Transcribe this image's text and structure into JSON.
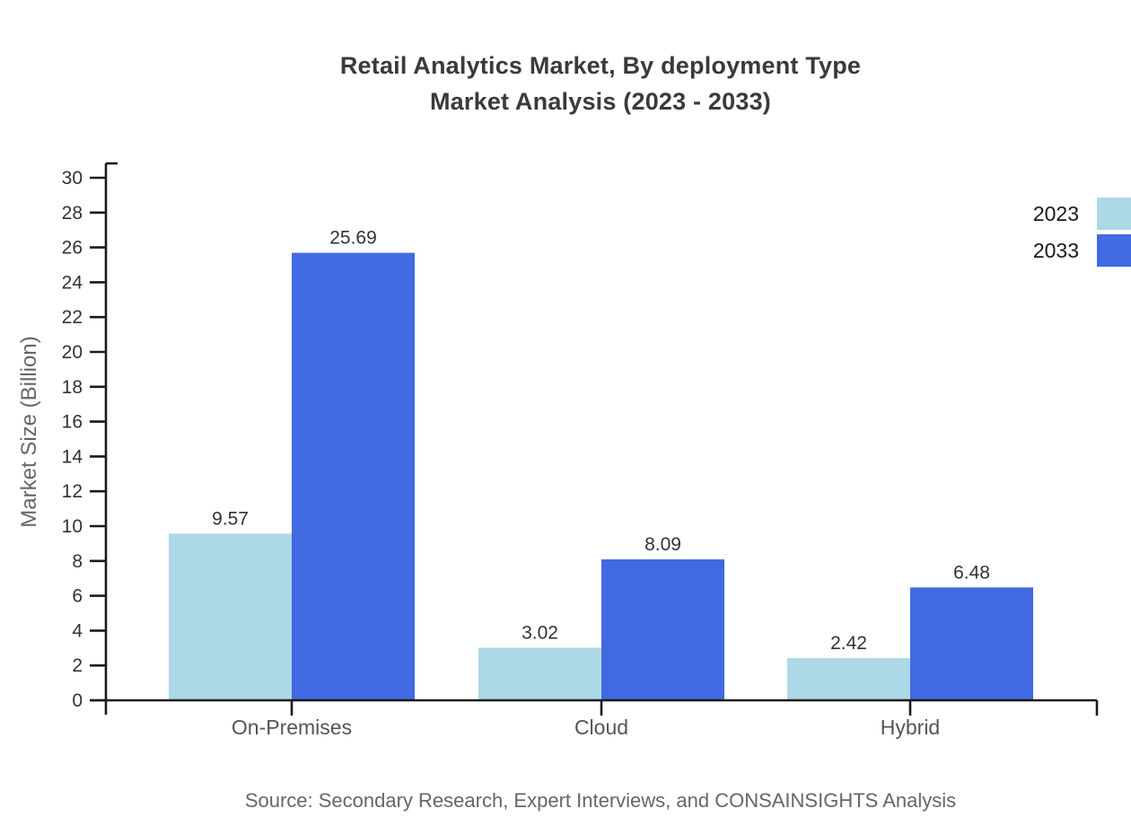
{
  "title": {
    "line1": "Retail Analytics Market, By deployment Type",
    "line2": "Market Analysis (2023 - 2033)"
  },
  "source": "Source: Secondary Research, Expert Interviews, and CONSAINSIGHTS Analysis",
  "chart_data": {
    "type": "bar",
    "title": "Retail Analytics Market, By deployment Type Market Analysis (2023 - 2033)",
    "categories": [
      "On-Premises",
      "Cloud",
      "Hybrid"
    ],
    "series": [
      {
        "name": "2023",
        "color": "#ADD8E6",
        "values": [
          9.57,
          3.02,
          2.42
        ]
      },
      {
        "name": "2033",
        "color": "#4169E1",
        "values": [
          25.69,
          8.09,
          6.48
        ]
      }
    ],
    "value_labels": [
      [
        "9.57",
        "3.02",
        "2.42"
      ],
      [
        "25.69",
        "8.09",
        "6.48"
      ]
    ],
    "xlabel": "",
    "ylabel": "Market Size (Billion)",
    "ylim": [
      0,
      30
    ],
    "ytick_step": 2,
    "ytick_labels": [
      "0",
      "2",
      "4",
      "6",
      "8",
      "10",
      "12",
      "14",
      "16",
      "18",
      "20",
      "22",
      "24",
      "26",
      "28",
      "30"
    ],
    "grid": false,
    "legend_position": "top-right",
    "legend": [
      {
        "label": "2023",
        "color": "#ADD8E6"
      },
      {
        "label": "2033",
        "color": "#4169E1"
      }
    ]
  },
  "colors": {
    "series_2023": "#ADD8E6",
    "series_2033": "#4169E1",
    "axis": "#1a1a1a",
    "tick_label": "#333333",
    "category_label": "#555555",
    "axis_title": "#666666",
    "value_label": "#333333",
    "title_text": "#3a3a3a",
    "source_text": "#666666",
    "legend_text": "#1a1a1a"
  }
}
